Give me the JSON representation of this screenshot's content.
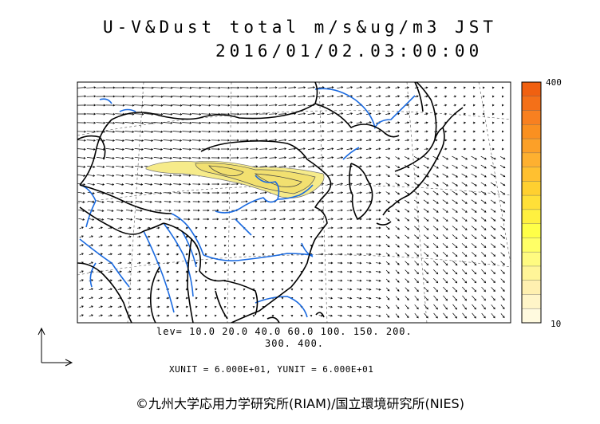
{
  "title": "U-V&Dust total m/s&ug/m3 JST",
  "datetime": "2016/01/02.03:00:00",
  "levels_line1": "lev= 10.0 20.0 40.0 60.0 100. 150. 200.",
  "levels_line2": "300. 400.",
  "units": "XUNIT = 6.000E+01, YUNIT = 6.000E+01",
  "colorbar": {
    "max_label": "400",
    "min_label": "10",
    "colors": [
      "#f06010",
      "#f47018",
      "#f88020",
      "#fa9020",
      "#fca028",
      "#feb030",
      "#ffc030",
      "#ffd030",
      "#ffe038",
      "#fff040",
      "#ffff48",
      "#ffff66",
      "#fffb80",
      "#fff598",
      "#fff0b0",
      "#fff5c8",
      "#fffadf"
    ]
  },
  "credit": "©九州大学応用力学研究所(RIAM)/国立環境研究所(NIES)",
  "colors": {
    "rivers": "#1a6ae0",
    "coast": "#000000",
    "dust": "#f6eb8a"
  }
}
